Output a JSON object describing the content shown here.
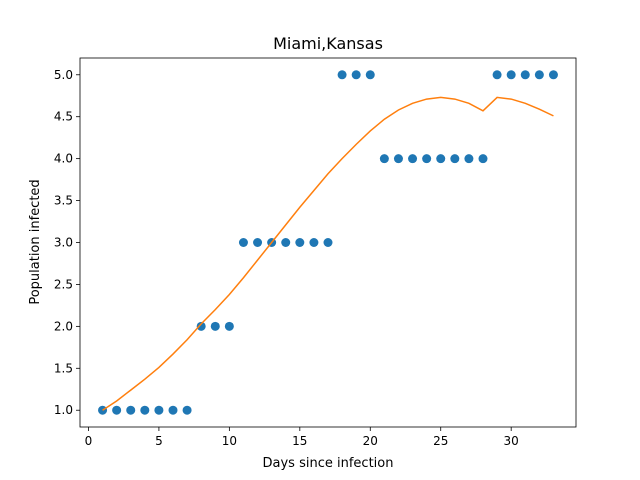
{
  "chart_data": {
    "type": "scatter",
    "title": "Miami,Kansas",
    "xlabel": "Days since infection",
    "ylabel": "Population infected",
    "xlim": [
      -0.6,
      34.6
    ],
    "ylim": [
      0.8,
      5.2
    ],
    "xticks": [
      0,
      5,
      10,
      15,
      20,
      25,
      30
    ],
    "xtick_labels": [
      "0",
      "5",
      "10",
      "15",
      "20",
      "25",
      "30"
    ],
    "yticks": [
      1.0,
      1.5,
      2.0,
      2.5,
      3.0,
      3.5,
      4.0,
      4.5,
      5.0
    ],
    "ytick_labels": [
      "1.0",
      "1.5",
      "2.0",
      "2.5",
      "3.0",
      "3.5",
      "4.0",
      "4.5",
      "5.0"
    ],
    "grid": false,
    "series": [
      {
        "kind": "scatter",
        "color": "#1f77b4",
        "x": [
          1,
          2,
          3,
          4,
          5,
          6,
          7,
          8,
          9,
          10,
          11,
          12,
          13,
          14,
          15,
          16,
          17,
          18,
          19,
          20,
          21,
          22,
          23,
          24,
          25,
          26,
          27,
          28,
          29,
          30,
          31,
          32,
          33
        ],
        "y": [
          1,
          1,
          1,
          1,
          1,
          1,
          1,
          2,
          2,
          2,
          3,
          3,
          3,
          3,
          3,
          3,
          3,
          5,
          5,
          5,
          4,
          4,
          4,
          4,
          4,
          4,
          4,
          4,
          5,
          5,
          5,
          5,
          5
        ]
      },
      {
        "kind": "line",
        "color": "#ff7f0e",
        "x": [
          1,
          2,
          3,
          4,
          5,
          6,
          7,
          8,
          9,
          10,
          11,
          12,
          13,
          14,
          15,
          16,
          17,
          18,
          19,
          20,
          21,
          22,
          23,
          24,
          25,
          26,
          27,
          28,
          29,
          30,
          31,
          32,
          33
        ],
        "y": [
          1.0,
          1.11,
          1.24,
          1.37,
          1.51,
          1.67,
          1.84,
          2.03,
          2.2,
          2.38,
          2.58,
          2.79,
          3.0,
          3.21,
          3.42,
          3.62,
          3.82,
          4.0,
          4.17,
          4.33,
          4.47,
          4.58,
          4.66,
          4.71,
          4.73,
          4.71,
          4.66,
          4.57,
          4.73,
          4.71,
          4.66,
          4.59,
          4.51
        ]
      }
    ]
  }
}
